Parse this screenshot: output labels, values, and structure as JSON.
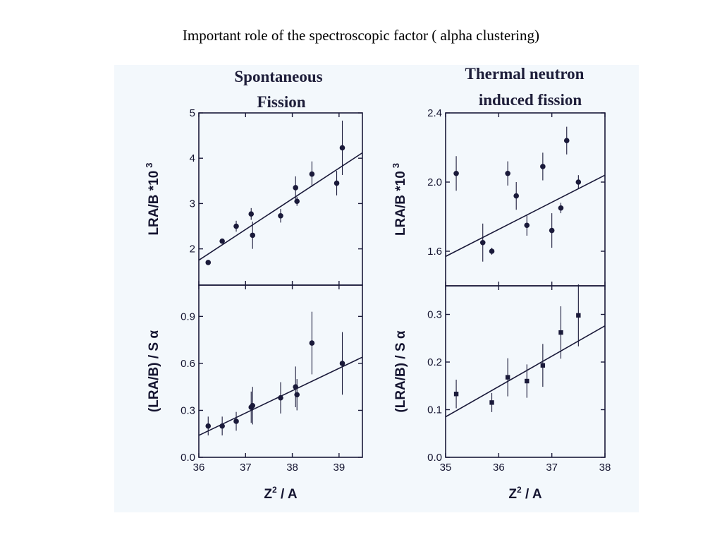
{
  "page": {
    "title": "Important role of the spectroscopic factor ( alpha clustering)"
  },
  "panels": {
    "left_title": [
      "Spontaneous",
      "Fission"
    ],
    "right_title": [
      "Thermal neutron",
      "induced fission"
    ]
  },
  "colors": {
    "ink": "#1a1a3a",
    "figure_bg": "#f3f8fc"
  },
  "chart_data": [
    {
      "type": "scatter",
      "panel": "spontaneous-top",
      "ylabel": "LRA/B *10",
      "ylabel_sup": "3",
      "xlim": [
        36,
        39.5
      ],
      "ylim": [
        1.2,
        5
      ],
      "yticks": [
        2,
        3,
        4,
        5
      ],
      "ytick_labels": [
        "2",
        "3",
        "4",
        "5"
      ],
      "marker": "circle",
      "points": [
        {
          "x": 36.2,
          "y": 1.7,
          "err": 0.05
        },
        {
          "x": 36.5,
          "y": 2.17,
          "err": 0.05
        },
        {
          "x": 36.8,
          "y": 2.5,
          "err": 0.12
        },
        {
          "x": 37.12,
          "y": 2.77,
          "err": 0.13
        },
        {
          "x": 37.15,
          "y": 2.3,
          "err": 0.3
        },
        {
          "x": 37.75,
          "y": 2.73,
          "err": 0.15
        },
        {
          "x": 38.07,
          "y": 3.35,
          "err": 0.25
        },
        {
          "x": 38.1,
          "y": 3.05,
          "err": 0.1
        },
        {
          "x": 38.42,
          "y": 3.65,
          "err": 0.28
        },
        {
          "x": 38.95,
          "y": 3.45,
          "err": 0.27
        },
        {
          "x": 39.07,
          "y": 4.23,
          "err": 0.6
        }
      ],
      "fit": {
        "x": [
          36,
          39.5
        ],
        "y": [
          1.75,
          4.12
        ]
      }
    },
    {
      "type": "scatter",
      "panel": "spontaneous-bottom",
      "ylabel": "(LRA/B) / S α",
      "xlabel": "Z",
      "xlabel_sup": "2",
      "xlabel_tail": " / A",
      "xlim": [
        36,
        39.5
      ],
      "ylim": [
        0,
        1.1
      ],
      "xticks": [
        36,
        37,
        38,
        39
      ],
      "xtick_labels": [
        "36",
        "37",
        "38",
        "39"
      ],
      "yticks": [
        0,
        0.3,
        0.6,
        0.9
      ],
      "ytick_labels": [
        "0.0",
        "0.3",
        "0.6",
        "0.9"
      ],
      "marker": "circle",
      "points": [
        {
          "x": 36.2,
          "y": 0.2,
          "err": 0.06
        },
        {
          "x": 36.5,
          "y": 0.2,
          "err": 0.06
        },
        {
          "x": 36.8,
          "y": 0.23,
          "err": 0.06
        },
        {
          "x": 37.12,
          "y": 0.32,
          "err": 0.1
        },
        {
          "x": 37.15,
          "y": 0.33,
          "err": 0.12
        },
        {
          "x": 37.75,
          "y": 0.38,
          "err": 0.1
        },
        {
          "x": 38.07,
          "y": 0.45,
          "err": 0.13
        },
        {
          "x": 38.1,
          "y": 0.4,
          "err": 0.1
        },
        {
          "x": 38.42,
          "y": 0.73,
          "err": 0.2
        },
        {
          "x": 39.07,
          "y": 0.6,
          "err": 0.2
        }
      ],
      "fit": {
        "x": [
          36,
          39.5
        ],
        "y": [
          0.14,
          0.64
        ]
      }
    },
    {
      "type": "scatter",
      "panel": "thermal-top",
      "ylabel": "LRA/B *10",
      "ylabel_sup": "3",
      "xlim": [
        35,
        38
      ],
      "ylim": [
        1.4,
        2.4
      ],
      "yticks": [
        1.6,
        2.0,
        2.4
      ],
      "ytick_labels": [
        "1.6",
        "2.0",
        "2.4"
      ],
      "marker": "circle",
      "points": [
        {
          "x": 35.2,
          "y": 2.05,
          "err": 0.1
        },
        {
          "x": 35.7,
          "y": 1.65,
          "err": 0.11
        },
        {
          "x": 35.87,
          "y": 1.6,
          "err": 0.02
        },
        {
          "x": 36.17,
          "y": 2.05,
          "err": 0.07
        },
        {
          "x": 36.33,
          "y": 1.92,
          "err": 0.08
        },
        {
          "x": 36.53,
          "y": 1.75,
          "err": 0.06
        },
        {
          "x": 36.83,
          "y": 2.09,
          "err": 0.08
        },
        {
          "x": 37.0,
          "y": 1.72,
          "err": 0.1
        },
        {
          "x": 37.17,
          "y": 1.85,
          "err": 0.03
        },
        {
          "x": 37.28,
          "y": 2.24,
          "err": 0.08
        },
        {
          "x": 37.5,
          "y": 2.0,
          "err": 0.04
        }
      ],
      "fit": {
        "x": [
          35,
          38
        ],
        "y": [
          1.57,
          2.04
        ]
      }
    },
    {
      "type": "scatter",
      "panel": "thermal-bottom",
      "ylabel": "(LRA/B) / S α",
      "xlabel": "Z",
      "xlabel_sup": "2",
      "xlabel_tail": " / A",
      "xlim": [
        35,
        38
      ],
      "ylim": [
        0,
        0.36
      ],
      "xticks": [
        35,
        36,
        37,
        38
      ],
      "xtick_labels": [
        "35",
        "36",
        "37",
        "38"
      ],
      "yticks": [
        0,
        0.1,
        0.2,
        0.3
      ],
      "ytick_labels": [
        "0.0",
        "0.1",
        "0.2",
        "0.3"
      ],
      "marker": "square",
      "points": [
        {
          "x": 35.2,
          "y": 0.133,
          "err": 0.03
        },
        {
          "x": 35.87,
          "y": 0.115,
          "err": 0.02
        },
        {
          "x": 36.17,
          "y": 0.168,
          "err": 0.04
        },
        {
          "x": 36.53,
          "y": 0.16,
          "err": 0.035
        },
        {
          "x": 36.83,
          "y": 0.193,
          "err": 0.045
        },
        {
          "x": 37.17,
          "y": 0.262,
          "err": 0.055
        },
        {
          "x": 37.5,
          "y": 0.298,
          "err": 0.065
        }
      ],
      "fit": {
        "x": [
          35,
          38
        ],
        "y": [
          0.085,
          0.276
        ]
      }
    }
  ]
}
